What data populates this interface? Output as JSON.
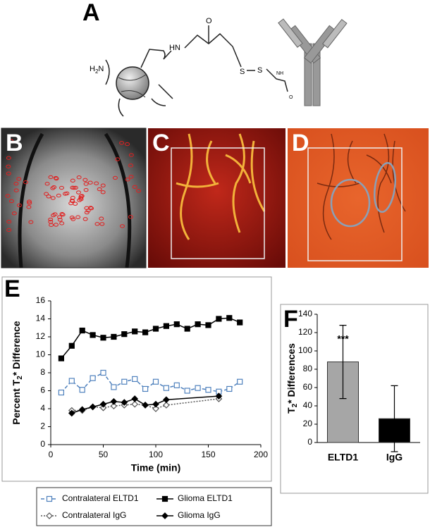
{
  "panel_labels": [
    "A",
    "B",
    "C",
    "D",
    "E",
    "F"
  ],
  "molecule": {
    "amine": [
      "H",
      "2",
      "N"
    ],
    "amide_n": "HN",
    "amide_o": "O",
    "sulfur_1": "S",
    "sulfur_2": "S",
    "link_nh": "NH",
    "link_o": "O"
  },
  "chart_data": [
    {
      "type": "line",
      "xlabel": "Time (min)",
      "ylabel": [
        "Percent T",
        "2",
        "* Difference"
      ],
      "xlim": [
        0,
        200
      ],
      "xticks": [
        0,
        50,
        100,
        150,
        200
      ],
      "ylim": [
        0,
        16
      ],
      "yticks": [
        0,
        2,
        4,
        6,
        8,
        10,
        12,
        14,
        16
      ],
      "legend": "bottom",
      "series": [
        {
          "name": "Contralateral ELTD1",
          "color": "#4f81bd",
          "line_style": "dashed",
          "marker": "square",
          "filled": false,
          "x": [
            10,
            20,
            30,
            40,
            50,
            60,
            70,
            80,
            90,
            100,
            110,
            120,
            130,
            140,
            150,
            160,
            170,
            180
          ],
          "values": [
            5.8,
            7.1,
            6.1,
            7.4,
            8,
            6.4,
            7,
            7.3,
            6.2,
            7,
            6.3,
            6.6,
            6,
            6.3,
            6.1,
            5.9,
            6.2,
            7
          ]
        },
        {
          "name": "Glioma ELTD1",
          "color": "#000000",
          "line_style": "solid",
          "marker": "square",
          "filled": true,
          "x": [
            10,
            20,
            30,
            40,
            50,
            60,
            70,
            80,
            90,
            100,
            110,
            120,
            130,
            140,
            150,
            160,
            170,
            180
          ],
          "values": [
            9.6,
            11,
            12.7,
            12.2,
            11.9,
            12,
            12.3,
            12.6,
            12.5,
            12.9,
            13.2,
            13.4,
            12.9,
            13.4,
            13.3,
            14,
            14.1,
            13.6
          ]
        },
        {
          "name": "Contralateral IgG",
          "color": "#555555",
          "line_style": "dotted",
          "marker": "diamond",
          "filled": false,
          "x": [
            20,
            30,
            40,
            50,
            60,
            70,
            80,
            90,
            100,
            110,
            160
          ],
          "values": [
            3.8,
            3.8,
            4.2,
            4.1,
            4.3,
            4.4,
            4.5,
            4.4,
            4,
            4.4,
            5.1
          ]
        },
        {
          "name": "Glioma IgG",
          "color": "#000000",
          "line_style": "solid",
          "marker": "diamond",
          "filled": true,
          "x": [
            20,
            30,
            40,
            50,
            60,
            70,
            80,
            90,
            100,
            110,
            160
          ],
          "values": [
            3.5,
            3.9,
            4.2,
            4.5,
            4.8,
            4.7,
            5.1,
            4.4,
            4.5,
            5,
            5.4
          ]
        }
      ]
    },
    {
      "type": "bar",
      "ylabel": [
        "T",
        "2",
        "* Differences"
      ],
      "categories": [
        "ELTD1",
        "IgG"
      ],
      "values": [
        88,
        26
      ],
      "errors": [
        40,
        36
      ],
      "colors": [
        "#a6a6a6",
        "#000000"
      ],
      "annotation": "***",
      "ylim": [
        0,
        140
      ],
      "yticks": [
        0,
        20,
        40,
        60,
        80,
        100,
        120,
        140
      ]
    }
  ]
}
